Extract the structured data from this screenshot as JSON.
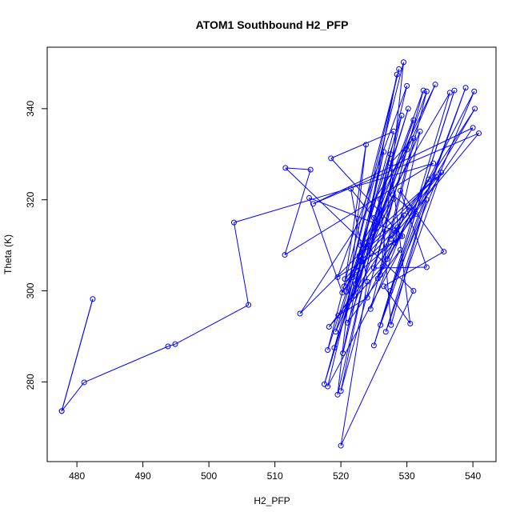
{
  "chart_data": {
    "type": "line",
    "title": "ATOM1 Southbound H2_PFP",
    "xlabel": "H2_PFP",
    "ylabel": "Theta (K)",
    "xlim": [
      475.5,
      543.5
    ],
    "ylim": [
      262.5,
      353.5
    ],
    "xticks": [
      480,
      490,
      500,
      510,
      520,
      530,
      540
    ],
    "yticks": [
      280,
      300,
      320,
      340
    ],
    "marker": "open-circle",
    "grid": false,
    "legend": "none",
    "color": "#0000ff",
    "series": [
      {
        "points": [
          [
            477.7,
            273.6
          ],
          [
            482.4,
            298.2
          ],
          [
            477.7,
            273.6
          ],
          [
            481.1,
            279.9
          ],
          [
            493.8,
            287.8
          ],
          [
            494.9,
            288.3
          ],
          [
            506.0,
            296.9
          ],
          [
            503.8,
            315.0
          ],
          [
            534.0,
            328.0
          ],
          [
            511.5,
            307.9
          ],
          [
            515.4,
            326.6
          ],
          [
            511.6,
            327.0
          ],
          [
            531.0,
            300.0
          ],
          [
            520.0,
            266.0
          ],
          [
            524.0,
            302.0
          ],
          [
            521.5,
            322.4
          ],
          [
            525.0,
            316.0
          ],
          [
            517.5,
            279.5
          ],
          [
            528.0,
            335.0
          ],
          [
            518.5,
            329.1
          ],
          [
            529.3,
            312.0
          ],
          [
            519.5,
            303.0
          ],
          [
            530.0,
            345.0
          ],
          [
            520.3,
            286.3
          ],
          [
            528.5,
            347.5
          ],
          [
            522.0,
            299.0
          ],
          [
            531.0,
            337.5
          ],
          [
            519.0,
            287.5
          ],
          [
            533.0,
            343.8
          ],
          [
            526.0,
            303.5
          ],
          [
            529.5,
            350.2
          ],
          [
            520.8,
            299.8
          ],
          [
            528.8,
            348.7
          ],
          [
            518.0,
            287.0
          ],
          [
            527.5,
            330.0
          ],
          [
            520.0,
            278.0
          ],
          [
            530.0,
            331.0
          ],
          [
            513.8,
            295.0
          ],
          [
            534.5,
            325.0
          ],
          [
            523.0,
            310.0
          ],
          [
            536.5,
            343.5
          ],
          [
            525.0,
            288.0
          ],
          [
            537.2,
            344.0
          ],
          [
            526.0,
            292.5
          ],
          [
            538.9,
            344.6
          ],
          [
            527.5,
            300.0
          ],
          [
            540.2,
            343.8
          ],
          [
            527.0,
            307.0
          ],
          [
            540.3,
            340.0
          ],
          [
            527.6,
            311.4
          ],
          [
            540.9,
            334.6
          ],
          [
            515.8,
            319.1
          ],
          [
            540.0,
            335.8
          ],
          [
            528.2,
            310.5
          ],
          [
            532.0,
            335.0
          ],
          [
            519.2,
            291.0
          ],
          [
            529.2,
            338.5
          ],
          [
            519.5,
            277.2
          ],
          [
            523.8,
            332.1
          ],
          [
            520.5,
            301.0
          ],
          [
            528.0,
            320.2
          ],
          [
            521.0,
            293.0
          ],
          [
            529.0,
            309.0
          ],
          [
            518.0,
            279.0
          ],
          [
            526.5,
            330.5
          ],
          [
            522.2,
            301.5
          ],
          [
            530.2,
            340.0
          ],
          [
            523.0,
            306.5
          ],
          [
            532.5,
            344.0
          ],
          [
            525.0,
            305.0
          ],
          [
            533.0,
            305.2
          ],
          [
            529.0,
            322.0
          ],
          [
            535.6,
            308.6
          ],
          [
            526.5,
            301.0
          ],
          [
            530.5,
            292.8
          ],
          [
            527.5,
            328.0
          ],
          [
            531.0,
            333.5
          ],
          [
            524.5,
            296.0
          ],
          [
            529.0,
            312.0
          ],
          [
            521.8,
            303.0
          ],
          [
            534.3,
            345.3
          ],
          [
            526.0,
            320.0
          ],
          [
            527.6,
            292.5
          ],
          [
            533.0,
            320.0
          ],
          [
            526.8,
            291.0
          ],
          [
            535.2,
            326.0
          ],
          [
            528.1,
            313.2
          ],
          [
            515.2,
            320.4
          ],
          [
            520.2,
            299.6
          ],
          [
            522.3,
            304.5
          ],
          [
            528.6,
            314.0
          ],
          [
            519.6,
            294.6
          ],
          [
            524.0,
            298.5
          ],
          [
            526.3,
            305.3
          ],
          [
            518.2,
            292.1
          ],
          [
            531.4,
            316.9
          ],
          [
            527.9,
            321.0
          ],
          [
            522.8,
            307.7
          ],
          [
            529.6,
            316.6
          ],
          [
            525.6,
            302.7
          ],
          [
            533.3,
            324.5
          ],
          [
            530.4,
            318.3
          ],
          [
            520.6,
            302.6
          ]
        ]
      }
    ]
  }
}
